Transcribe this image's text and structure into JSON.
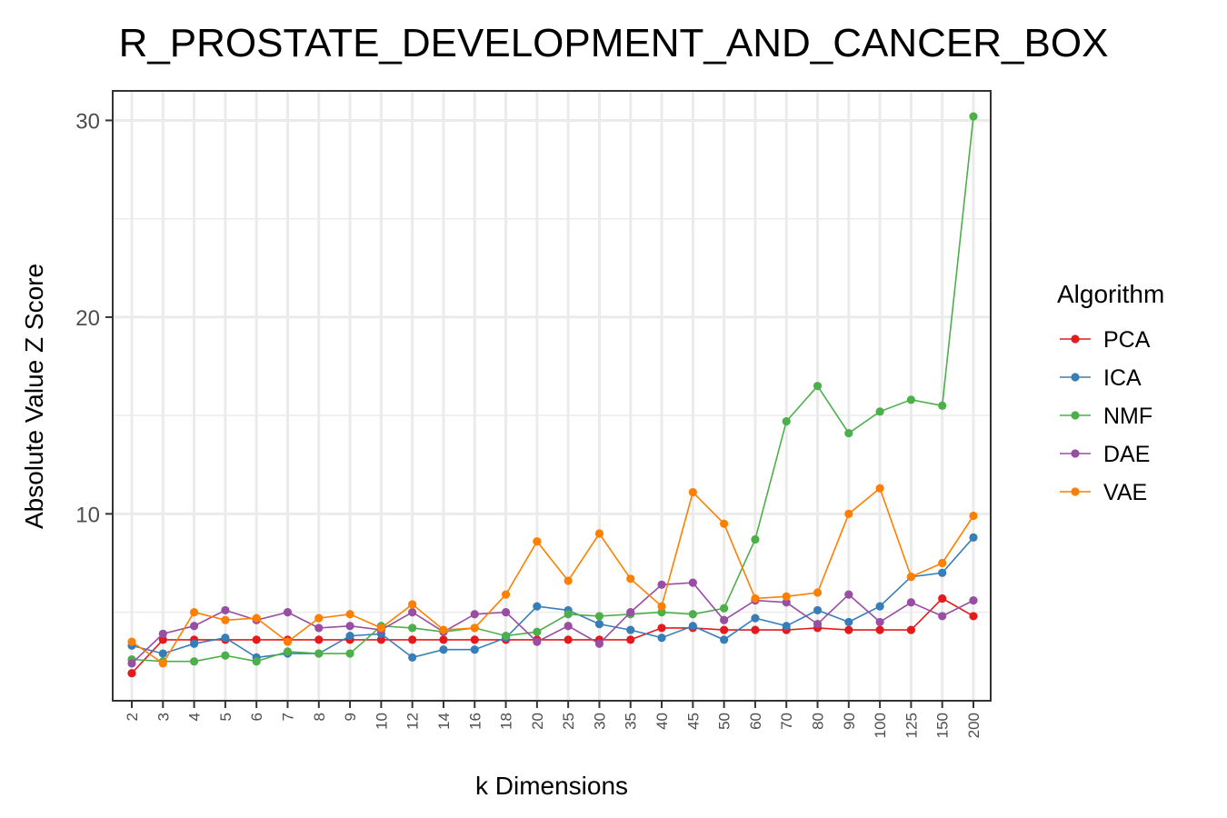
{
  "chart_data": {
    "type": "line",
    "title": "R_PROSTATE_DEVELOPMENT_AND_CANCER_BOX",
    "xlabel": "k Dimensions",
    "ylabel": "Absolute Value Z Score",
    "categories": [
      "2",
      "3",
      "4",
      "5",
      "6",
      "7",
      "8",
      "9",
      "10",
      "12",
      "14",
      "16",
      "18",
      "20",
      "25",
      "30",
      "35",
      "40",
      "45",
      "50",
      "60",
      "70",
      "80",
      "90",
      "100",
      "125",
      "150",
      "200"
    ],
    "ylim": [
      0.5,
      31.5
    ],
    "yticks": [
      10,
      20,
      30
    ],
    "grid": true,
    "legend": {
      "title": "Algorithm",
      "position": "right"
    },
    "series": [
      {
        "name": "PCA",
        "color": "#e41a1c",
        "values": [
          1.9,
          3.6,
          3.6,
          3.6,
          3.6,
          3.6,
          3.6,
          3.6,
          3.6,
          3.6,
          3.6,
          3.6,
          3.6,
          3.6,
          3.6,
          3.6,
          3.6,
          4.2,
          4.2,
          4.1,
          4.1,
          4.1,
          4.2,
          4.1,
          4.1,
          4.1,
          5.7,
          4.8
        ]
      },
      {
        "name": "ICA",
        "color": "#377eb8",
        "values": [
          3.3,
          2.9,
          3.4,
          3.7,
          2.7,
          2.9,
          2.9,
          3.8,
          3.9,
          2.7,
          3.1,
          3.1,
          3.7,
          5.3,
          5.1,
          4.4,
          4.1,
          3.7,
          4.3,
          3.6,
          4.7,
          4.3,
          5.1,
          4.5,
          5.3,
          6.8,
          7.0,
          8.8
        ]
      },
      {
        "name": "NMF",
        "color": "#4daf4a",
        "values": [
          2.6,
          2.5,
          2.5,
          2.8,
          2.5,
          3.0,
          2.9,
          2.9,
          4.3,
          4.2,
          4.0,
          4.2,
          3.8,
          4.0,
          4.9,
          4.8,
          4.9,
          5.0,
          4.9,
          5.2,
          8.7,
          14.7,
          16.5,
          14.1,
          15.2,
          15.8,
          15.5,
          30.2
        ]
      },
      {
        "name": "DAE",
        "color": "#984ea3",
        "values": [
          2.4,
          3.9,
          4.3,
          5.1,
          4.6,
          5.0,
          4.2,
          4.3,
          4.1,
          5.0,
          4.0,
          4.9,
          5.0,
          3.5,
          4.3,
          3.4,
          5.0,
          6.4,
          6.5,
          4.6,
          5.6,
          5.5,
          4.4,
          5.9,
          4.5,
          5.5,
          4.8,
          5.6
        ]
      },
      {
        "name": "VAE",
        "color": "#ff7f00",
        "values": [
          3.5,
          2.4,
          5.0,
          4.6,
          4.7,
          3.5,
          4.7,
          4.9,
          4.2,
          5.4,
          4.1,
          4.2,
          5.9,
          8.6,
          6.6,
          9.0,
          6.7,
          5.3,
          11.1,
          9.5,
          5.7,
          5.8,
          6.0,
          10.0,
          11.3,
          6.8,
          7.5,
          9.9
        ]
      }
    ]
  }
}
